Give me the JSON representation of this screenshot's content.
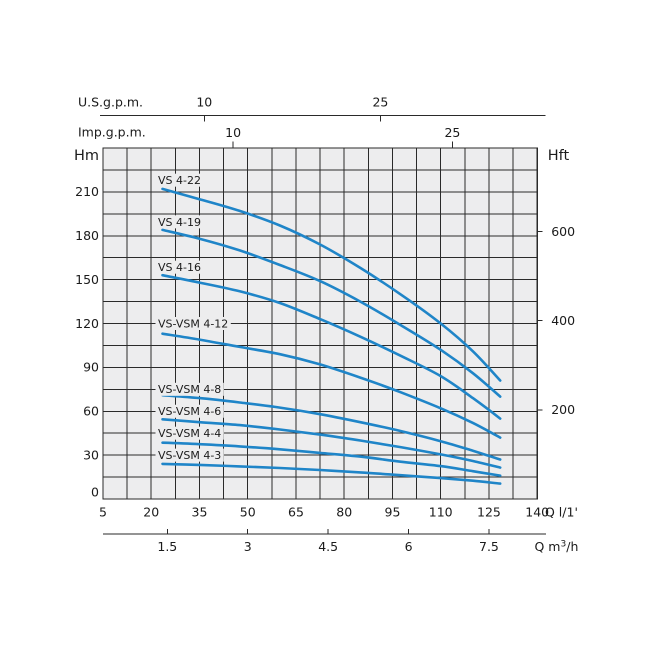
{
  "chart_data": {
    "type": "line",
    "title": "",
    "axes": {
      "x_bottom_primary": {
        "label": "Q l/1'",
        "unit": "l/1'",
        "min": 5,
        "max": 140,
        "ticks": [
          5,
          20,
          35,
          50,
          65,
          80,
          95,
          110,
          125,
          140
        ]
      },
      "x_bottom_secondary": {
        "label": "Q m³/h",
        "unit": "m³/h",
        "ticks": [
          1.5,
          3,
          4.5,
          6,
          7.5
        ],
        "l_per_unit": 16.6667
      },
      "x_top_usgpm": {
        "label": "U.S.g.p.m.",
        "ticks": [
          10,
          25
        ],
        "l_per_unit": 3.65
      },
      "x_top_impgpm": {
        "label": "Imp.g.p.m.",
        "ticks": [
          10,
          25
        ],
        "l_per_unit": 4.546
      },
      "y_left": {
        "label": "Hm",
        "unit": "m",
        "min": 0,
        "max": 240,
        "ticks": [
          0,
          30,
          60,
          90,
          120,
          150,
          180,
          210
        ]
      },
      "y_right": {
        "label": "Hft",
        "unit": "ft",
        "ticks": [
          200,
          400,
          600
        ],
        "m_per_unit": 0.3048
      }
    },
    "grid": {
      "columns": 18,
      "rows": 16,
      "x_step_l": 7.5,
      "y_step_m": 15,
      "grid_on": true
    },
    "legend_position": "labels-on-curves",
    "series": [
      {
        "name": "VS 4-22",
        "label_at_h": 218,
        "points": [
          [
            23.5,
            212
          ],
          [
            35,
            205
          ],
          [
            47.5,
            197
          ],
          [
            60,
            187
          ],
          [
            72.5,
            174
          ],
          [
            85,
            158
          ],
          [
            97.5,
            140
          ],
          [
            110,
            120
          ],
          [
            120,
            101
          ],
          [
            128.5,
            81
          ]
        ]
      },
      {
        "name": "VS 4-19",
        "label_at_h": 189.5,
        "points": [
          [
            23.5,
            184
          ],
          [
            35,
            178
          ],
          [
            47.5,
            170
          ],
          [
            60,
            160
          ],
          [
            72.5,
            149
          ],
          [
            85,
            135
          ],
          [
            97.5,
            119
          ],
          [
            110,
            102
          ],
          [
            120,
            86
          ],
          [
            128.5,
            70
          ]
        ]
      },
      {
        "name": "VS 4-16",
        "label_at_h": 158.5,
        "points": [
          [
            23.5,
            153
          ],
          [
            35,
            148
          ],
          [
            47.5,
            142
          ],
          [
            60,
            134
          ],
          [
            72.5,
            123
          ],
          [
            85,
            111
          ],
          [
            97.5,
            98
          ],
          [
            110,
            84
          ],
          [
            120,
            69
          ],
          [
            128.5,
            55
          ]
        ]
      },
      {
        "name": "VS-VSM 4-12",
        "label_at_h": 120,
        "points": [
          [
            23.5,
            113
          ],
          [
            35,
            109
          ],
          [
            47.5,
            104
          ],
          [
            60,
            99
          ],
          [
            72.5,
            92
          ],
          [
            85,
            83
          ],
          [
            97.5,
            73
          ],
          [
            110,
            62
          ],
          [
            120,
            52
          ],
          [
            128.5,
            42
          ]
        ]
      },
      {
        "name": "VS-VSM 4-8",
        "label_at_h": 75,
        "points": [
          [
            23.5,
            71
          ],
          [
            35,
            69
          ],
          [
            47.5,
            66
          ],
          [
            60,
            62.5
          ],
          [
            72.5,
            58
          ],
          [
            85,
            52.5
          ],
          [
            97.5,
            46.5
          ],
          [
            110,
            39.5
          ],
          [
            120,
            33
          ],
          [
            128.5,
            27
          ]
        ]
      },
      {
        "name": "VS-VSM 4-6",
        "label_at_h": 60,
        "points": [
          [
            23.5,
            54.5
          ],
          [
            35,
            52.5
          ],
          [
            47.5,
            50.5
          ],
          [
            60,
            47.5
          ],
          [
            72.5,
            44
          ],
          [
            85,
            40
          ],
          [
            97.5,
            35.5
          ],
          [
            110,
            30.5
          ],
          [
            120,
            26
          ],
          [
            128.5,
            21.5
          ]
        ]
      },
      {
        "name": "VS-VSM 4-4",
        "label_at_h": 45,
        "points": [
          [
            23.5,
            38.5
          ],
          [
            35,
            37.5
          ],
          [
            47.5,
            36
          ],
          [
            60,
            34
          ],
          [
            72.5,
            31.5
          ],
          [
            85,
            29
          ],
          [
            97.5,
            25.5
          ],
          [
            110,
            22.5
          ],
          [
            120,
            19
          ],
          [
            128.5,
            16
          ]
        ]
      },
      {
        "name": "VS-VSM 4-3",
        "label_at_h": 30,
        "points": [
          [
            23.5,
            24
          ],
          [
            35,
            23.3
          ],
          [
            47.5,
            22.3
          ],
          [
            60,
            21.2
          ],
          [
            72.5,
            19.8
          ],
          [
            85,
            18.2
          ],
          [
            97.5,
            16.3
          ],
          [
            110,
            14.3
          ],
          [
            120,
            12.5
          ],
          [
            128.5,
            10.5
          ]
        ]
      }
    ],
    "colors": {
      "curve": "#1f85c8",
      "grid_background": "#ededee",
      "grid_line": "#2a2a2a",
      "text": "#1b1b1b",
      "background": "#ffffff"
    }
  }
}
